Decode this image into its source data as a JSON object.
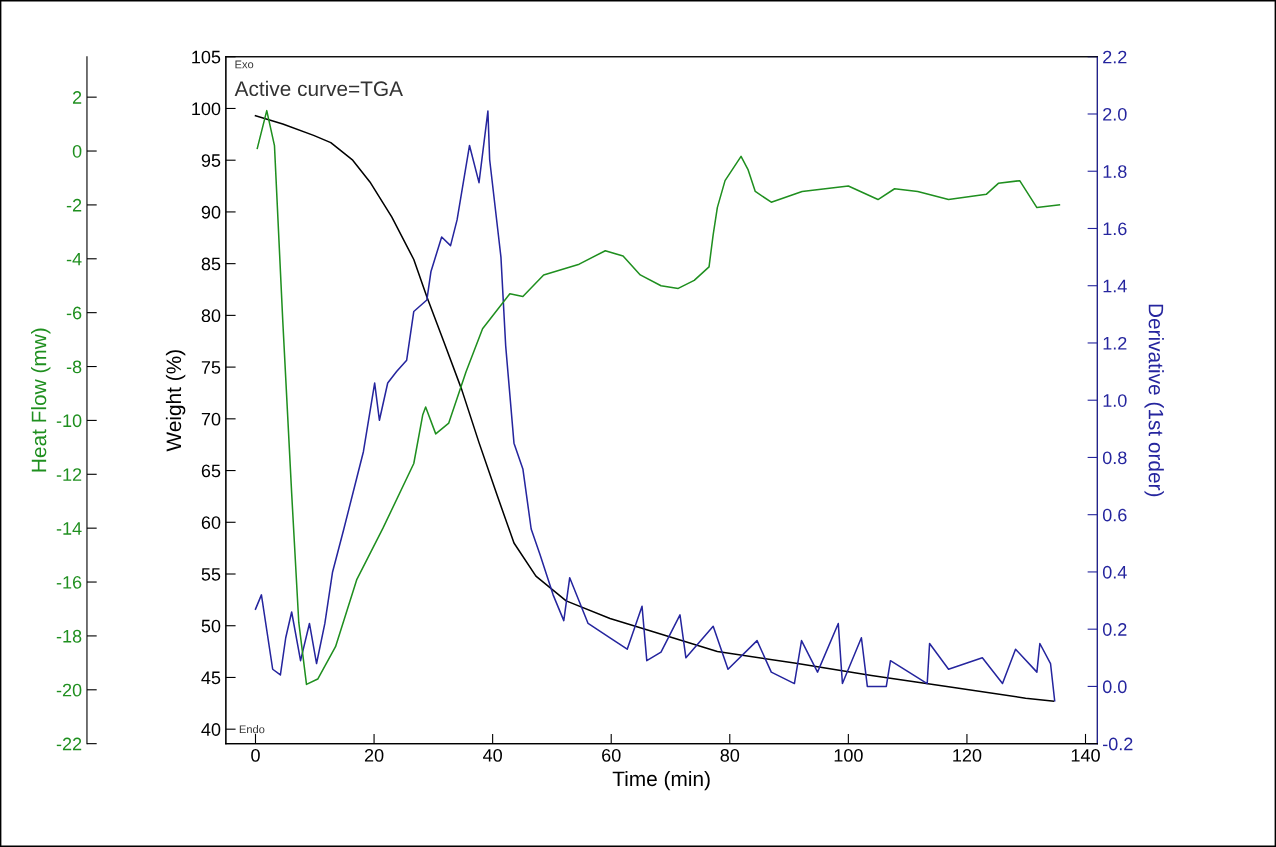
{
  "chart_data": {
    "type": "line",
    "xlabel": "Time (min)",
    "ylabel": "Weight (%)",
    "y2label": "Derivative (1st order)",
    "y3label": "Heat Flow (mw)",
    "annotations": [
      "Exo",
      "Active curve=TGA",
      "Endo"
    ],
    "xlim": [
      -5,
      142
    ],
    "xticks": [
      0,
      20,
      40,
      60,
      80,
      100,
      120,
      140
    ],
    "ylim": [
      38.6,
      105
    ],
    "yticks": [
      40,
      45,
      50,
      55,
      60,
      65,
      70,
      75,
      80,
      85,
      90,
      95,
      100,
      105
    ],
    "y2lim": [
      -0.2,
      2.2
    ],
    "y2ticks": [
      -0.2,
      {
        "value": 0.0,
        "label": "0.0"
      },
      0.2,
      0.4,
      0.6,
      0.8,
      {
        "value": 1.0,
        "label": "1.0"
      },
      1.2,
      1.4,
      1.6,
      1.8,
      {
        "value": 2.0,
        "label": "2.0"
      },
      2.2
    ],
    "y3lim": [
      -22,
      3.5
    ],
    "y3ticks": [
      -22,
      -20,
      -18,
      -16,
      -14,
      -12,
      -10,
      -8,
      -6,
      -4,
      -2,
      0,
      2
    ],
    "series": [
      {
        "color": "#000000",
        "axis": "y",
        "x": [
          0,
          4.6,
          9.8,
          12.7,
          16.4,
          19.3,
          23,
          26.7,
          28.9,
          31.8,
          34.8,
          37.7,
          40.7,
          43.6,
          47.3,
          52.4,
          59.8,
          64.9,
          77.9,
          90.9,
          103.9,
          116.9,
          129.9,
          134.6
        ],
        "values": [
          99.3,
          98.5,
          97.4,
          96.7,
          95.0,
          92.9,
          89.5,
          85.4,
          81.8,
          77.4,
          72.8,
          67.7,
          62.7,
          58.0,
          54.8,
          52.4,
          50.7,
          49.8,
          47.5,
          46.4,
          45.2,
          44.1,
          43.0,
          42.7
        ]
      },
      {
        "color": "#1f8f1f",
        "axis": "y3",
        "x": [
          0.3,
          1.9,
          3.2,
          4.6,
          6.1,
          7.3,
          8.6,
          10.5,
          13.5,
          17.1,
          21.5,
          26.7,
          28.2,
          28.7,
          30.4,
          32.6,
          35.5,
          38.3,
          42.9,
          45.1,
          48.6,
          54.6,
          59.0,
          62,
          64.9,
          68.4,
          71.3,
          74,
          76.5,
          77.2,
          77.9,
          79.2,
          81.9,
          83.1,
          84.3,
          87,
          92.2,
          100,
          105,
          107.8,
          111.7,
          116.9,
          123.3,
          125.3,
          128.9,
          131.8,
          135.6
        ],
        "values": [
          0.1,
          1.5,
          0.2,
          -6.3,
          -12.7,
          -17.5,
          -19.8,
          -19.6,
          -18.4,
          -15.9,
          -14.0,
          -11.6,
          -9.8,
          -9.5,
          -10.5,
          -10.1,
          -8.2,
          -6.6,
          -5.3,
          -5.4,
          -4.6,
          -4.2,
          -3.7,
          -3.9,
          -4.6,
          -5.0,
          -5.1,
          -4.8,
          -4.3,
          -3.1,
          -2.1,
          -1.1,
          -0.2,
          -0.7,
          -1.5,
          -1.9,
          -1.5,
          -1.3,
          -1.8,
          -1.4,
          -1.5,
          -1.8,
          -1.6,
          -1.2,
          -1.1,
          -2.1,
          -2.0
        ]
      },
      {
        "color": "#25259e",
        "axis": "y2",
        "x": [
          0,
          1,
          2.9,
          4.2,
          5.1,
          6.1,
          7.6,
          9.1,
          10.3,
          11.7,
          13.0,
          14.9,
          17.1,
          18.2,
          20.1,
          20.9,
          22.3,
          23.8,
          25.5,
          26.7,
          28.9,
          29.6,
          31.4,
          32.9,
          34,
          36.1,
          37.7,
          39.2,
          39.5,
          41.4,
          42.2,
          43.6,
          45.1,
          46.5,
          48,
          50.2,
          52,
          53,
          56.1,
          59.8,
          62.7,
          65.2,
          66,
          68.4,
          71.6,
          72.6,
          77.2,
          79.7,
          84.6,
          87,
          90.9,
          92.1,
          94.8,
          98.3,
          99,
          102.2,
          103.2,
          106.4,
          107.1,
          113.3,
          113.7,
          116.9,
          122.6,
          126,
          128.2,
          131.8,
          132.3,
          134.1,
          134.8
        ],
        "values": [
          0.27,
          0.32,
          0.06,
          0.04,
          0.17,
          0.26,
          0.09,
          0.22,
          0.08,
          0.22,
          0.4,
          0.55,
          0.73,
          0.82,
          1.06,
          0.93,
          1.06,
          1.1,
          1.14,
          1.31,
          1.35,
          1.45,
          1.57,
          1.54,
          1.63,
          1.89,
          1.76,
          2.01,
          1.84,
          1.5,
          1.19,
          0.85,
          0.76,
          0.55,
          0.46,
          0.32,
          0.23,
          0.38,
          0.22,
          0.17,
          0.13,
          0.28,
          0.09,
          0.12,
          0.25,
          0.1,
          0.21,
          0.06,
          0.16,
          0.05,
          0.01,
          0.16,
          0.05,
          0.22,
          0.01,
          0.17,
          0.0,
          0.0,
          0.09,
          0.01,
          0.15,
          0.06,
          0.1,
          0.01,
          0.13,
          0.05,
          0.15,
          0.08,
          -0.05
        ]
      }
    ]
  }
}
